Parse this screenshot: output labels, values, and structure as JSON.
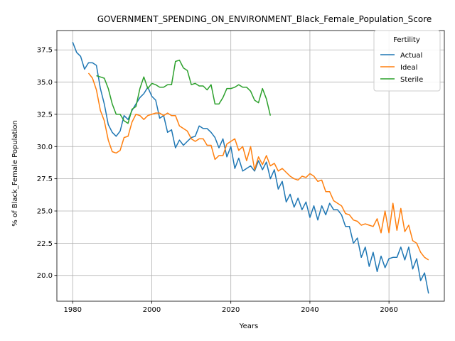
{
  "chart_data": {
    "type": "line",
    "title": "GOVERNMENT_SPENDING_ON_ENVIRONMENT_Black_Female_Population_Score",
    "xlabel": "Years",
    "ylabel": "% of Black_Female Population",
    "xlim": [
      1976,
      2074
    ],
    "ylim": [
      18.0,
      39.0
    ],
    "xticks": [
      1980,
      2000,
      2020,
      2040,
      2060
    ],
    "yticks": [
      20.0,
      22.5,
      25.0,
      27.5,
      30.0,
      32.5,
      35.0,
      37.5
    ],
    "ytick_labels": [
      "20.0",
      "22.5",
      "25.0",
      "27.5",
      "30.0",
      "32.5",
      "35.0",
      "37.5"
    ],
    "grid": true,
    "legend": {
      "title": "Fertility",
      "placement": "top-right"
    },
    "series": [
      {
        "name": "Actual",
        "color": "#1f77b4",
        "x": [
          1980,
          1981,
          1982,
          1983,
          1984,
          1985,
          1986,
          1987,
          1988,
          1989,
          1990,
          1991,
          1992,
          1993,
          1994,
          1995,
          1996,
          1997,
          1998,
          1999,
          2000,
          2001,
          2002,
          2003,
          2004,
          2005,
          2006,
          2007,
          2008,
          2009,
          2010,
          2011,
          2012,
          2013,
          2014,
          2015,
          2016,
          2017,
          2018,
          2019,
          2020,
          2021,
          2022,
          2023,
          2024,
          2025,
          2026,
          2027,
          2028,
          2029,
          2030,
          2031,
          2032,
          2033,
          2034,
          2035,
          2036,
          2037,
          2038,
          2039,
          2040,
          2041,
          2042,
          2043,
          2044,
          2045,
          2046,
          2047,
          2048,
          2049,
          2050,
          2051,
          2052,
          2053,
          2054,
          2055,
          2056,
          2057,
          2058,
          2059,
          2060,
          2061,
          2062,
          2063,
          2064,
          2065,
          2066,
          2067,
          2068,
          2069,
          2070
        ],
        "y": [
          38.1,
          37.3,
          37.0,
          36.0,
          36.5,
          36.5,
          36.3,
          34.5,
          33.3,
          31.7,
          31.1,
          30.8,
          31.2,
          32.4,
          32.1,
          32.8,
          33.3,
          33.8,
          34.1,
          34.6,
          33.9,
          33.6,
          32.2,
          32.4,
          31.1,
          31.3,
          29.9,
          30.5,
          30.1,
          30.4,
          30.7,
          30.8,
          31.6,
          31.4,
          31.4,
          31.1,
          30.7,
          29.9,
          30.6,
          29.2,
          30.0,
          28.3,
          29.1,
          28.1,
          28.3,
          28.5,
          28.1,
          28.9,
          28.2,
          28.8,
          27.5,
          28.2,
          26.7,
          27.3,
          25.7,
          26.3,
          25.3,
          26.0,
          25.1,
          25.7,
          24.5,
          25.4,
          24.3,
          25.4,
          24.7,
          25.6,
          25.1,
          25.1,
          24.7,
          23.8,
          23.8,
          22.5,
          22.9,
          21.4,
          22.2,
          20.7,
          21.8,
          20.3,
          21.5,
          20.6,
          21.3,
          21.4,
          21.4,
          22.2,
          21.2,
          22.2,
          20.5,
          21.3,
          19.6,
          20.2,
          18.6
        ]
      },
      {
        "name": "Ideal",
        "color": "#ff7f0e",
        "x": [
          1984,
          1985,
          1986,
          1987,
          1988,
          1989,
          1990,
          1991,
          1992,
          1993,
          1994,
          1995,
          1996,
          1997,
          1998,
          1999,
          2000,
          2001,
          2002,
          2003,
          2004,
          2005,
          2006,
          2007,
          2008,
          2009,
          2010,
          2011,
          2012,
          2013,
          2014,
          2015,
          2016,
          2017,
          2018,
          2019,
          2020,
          2021,
          2022,
          2023,
          2024,
          2025,
          2026,
          2027,
          2028,
          2029,
          2030,
          2031,
          2032,
          2033,
          2034,
          2035,
          2036,
          2037,
          2038,
          2039,
          2040,
          2041,
          2042,
          2043,
          2044,
          2045,
          2046,
          2047,
          2048,
          2049,
          2050,
          2051,
          2052,
          2053,
          2054,
          2055,
          2056,
          2057,
          2058,
          2059,
          2060,
          2061,
          2062,
          2063,
          2064,
          2065,
          2066,
          2067,
          2068,
          2069,
          2070
        ],
        "y": [
          35.7,
          35.3,
          34.4,
          32.8,
          32.0,
          30.5,
          29.6,
          29.5,
          29.7,
          30.7,
          30.8,
          31.9,
          32.5,
          32.4,
          32.1,
          32.4,
          32.5,
          32.6,
          32.6,
          32.4,
          32.6,
          32.4,
          32.4,
          31.6,
          31.4,
          31.2,
          30.6,
          30.4,
          30.6,
          30.6,
          30.1,
          30.1,
          29.0,
          29.3,
          29.3,
          30.2,
          30.4,
          30.6,
          29.7,
          30.0,
          28.9,
          30.0,
          28.2,
          29.2,
          28.6,
          29.3,
          28.5,
          28.7,
          28.1,
          28.3,
          28.0,
          27.7,
          27.5,
          27.4,
          27.7,
          27.6,
          27.9,
          27.7,
          27.3,
          27.4,
          26.5,
          26.5,
          25.8,
          25.6,
          25.4,
          24.8,
          24.7,
          24.3,
          24.2,
          23.9,
          24.0,
          23.9,
          23.8,
          24.4,
          23.3,
          25.0,
          23.3,
          25.6,
          23.5,
          25.2,
          23.4,
          23.9,
          22.7,
          22.5,
          21.8,
          21.4,
          21.2
        ]
      },
      {
        "name": "Sterile",
        "color": "#2ca02c",
        "x": [
          1986,
          1987,
          1988,
          1989,
          1990,
          1991,
          1992,
          1993,
          1994,
          1995,
          1996,
          1997,
          1998,
          1999,
          2000,
          2001,
          2002,
          2003,
          2004,
          2005,
          2006,
          2007,
          2008,
          2009,
          2010,
          2011,
          2012,
          2013,
          2014,
          2015,
          2016,
          2017,
          2018,
          2019,
          2020,
          2021,
          2022,
          2023,
          2024,
          2025,
          2026,
          2027,
          2028,
          2029,
          2030
        ],
        "y": [
          35.5,
          35.4,
          35.3,
          34.5,
          33.3,
          32.5,
          32.5,
          32.0,
          31.8,
          32.9,
          33.1,
          34.5,
          35.4,
          34.5,
          34.9,
          34.8,
          34.6,
          34.6,
          34.8,
          34.8,
          36.6,
          36.7,
          36.1,
          35.9,
          34.8,
          34.9,
          34.7,
          34.7,
          34.4,
          34.8,
          33.3,
          33.3,
          33.8,
          34.5,
          34.5,
          34.6,
          34.8,
          34.6,
          34.6,
          34.3,
          33.6,
          33.4,
          34.5,
          33.7,
          32.4
        ]
      }
    ]
  }
}
